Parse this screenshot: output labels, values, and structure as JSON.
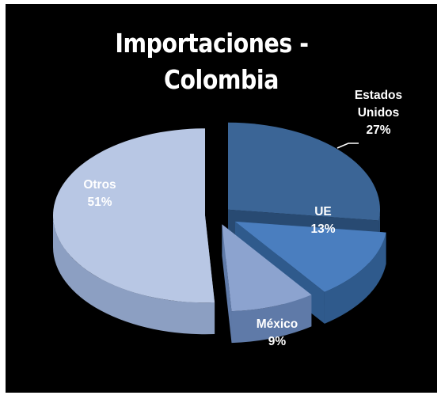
{
  "chart_data": {
    "type": "pie",
    "title_lines": [
      "Importaciones -",
      "Colombia"
    ],
    "slices": [
      {
        "label_lines": [
          "Estados",
          "Unidos"
        ],
        "value": 27,
        "value_text": "27%",
        "color": "#3b6596",
        "side": "#284a72"
      },
      {
        "label_lines": [
          "UE"
        ],
        "value": 13,
        "value_text": "13%",
        "color": "#4a7ebf",
        "side": "#2f5a8c"
      },
      {
        "label_lines": [
          "México"
        ],
        "value": 9,
        "value_text": "9%",
        "color": "#8ca3cf",
        "side": "#5f7aa8"
      },
      {
        "label_lines": [
          "Otros"
        ],
        "value": 51,
        "value_text": "51%",
        "color": "#b8c7e4",
        "side": "#8c9fc2"
      }
    ],
    "colors": {
      "background": "#000000",
      "title": "#ffffff",
      "label_dark": "#ffffff"
    }
  }
}
